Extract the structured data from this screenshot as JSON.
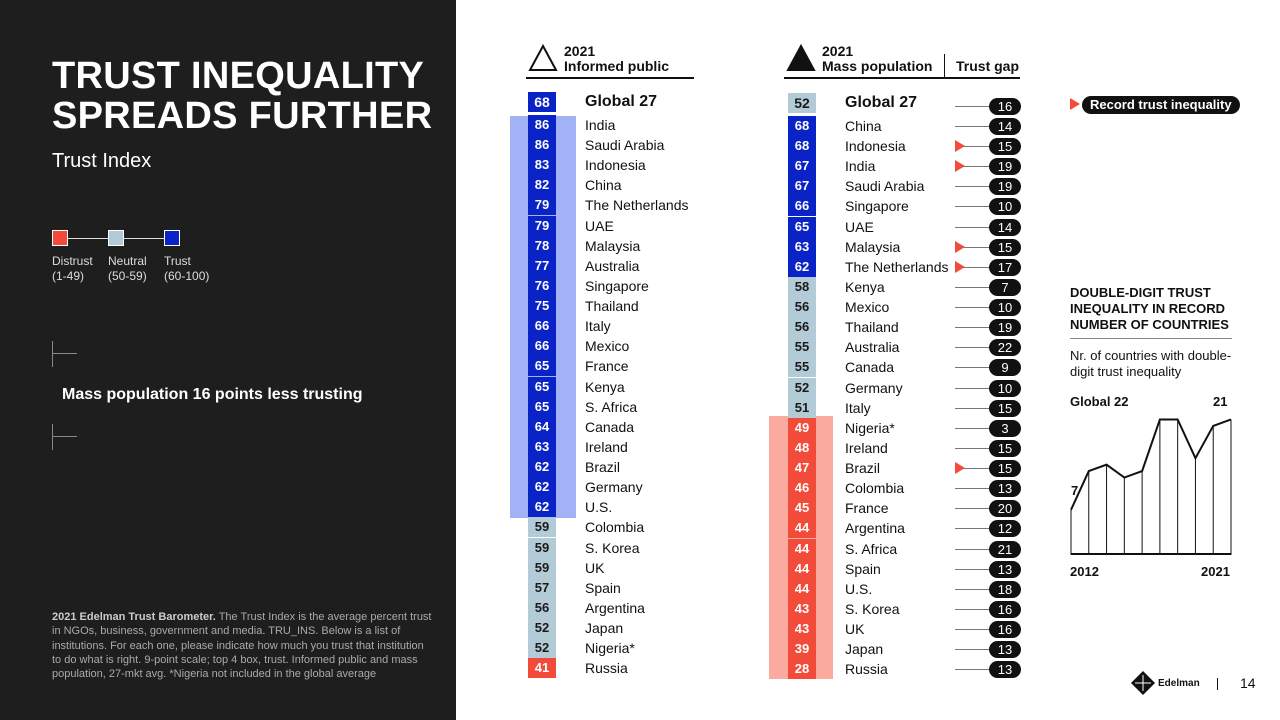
{
  "slide": {
    "title_line1": "TRUST INEQUALITY",
    "title_line2": "SPREADS FURTHER",
    "subtitle": "Trust Index",
    "mass_note": "Mass population 16 points less trusting",
    "footnote_bold": "2021 Edelman Trust Barometer.",
    "footnote_text": " The Trust Index is the average percent trust in NGOs, business, government and media. TRU_INS. Below is a list of institutions. For each one, please indicate how much you trust that institution to do what is right. 9-point scale; top 4 box, trust. Informed public and mass population, 27-mkt avg. *Nigeria not included in the global average",
    "page_number": "14",
    "logo_text": "Edelman"
  },
  "legend": {
    "items": [
      {
        "label": "Distrust",
        "range": "(1-49)",
        "color": "#f34b3a"
      },
      {
        "label": "Neutral",
        "range": "(50-59)",
        "color": "#b3cbd6"
      },
      {
        "label": "Trust",
        "range": "(60-100)",
        "color": "#0a23c7"
      }
    ]
  },
  "colors": {
    "trust": "#0a23c7",
    "neutral": "#b3cbd6",
    "distrust": "#f34b3a",
    "trust_highlight": "#a3b2f6",
    "distrust_highlight": "#fbaaa0"
  },
  "chart_data": [
    {
      "type": "table",
      "title": "Trust Index",
      "header_year": "2021",
      "header_label": "Informed public",
      "global": {
        "label": "Global 27",
        "value": 68
      },
      "rows": [
        {
          "country": "India",
          "value": 86
        },
        {
          "country": "Saudi Arabia",
          "value": 86
        },
        {
          "country": "Indonesia",
          "value": 83
        },
        {
          "country": "China",
          "value": 82
        },
        {
          "country": "The Netherlands",
          "value": 79
        },
        {
          "country": "UAE",
          "value": 79
        },
        {
          "country": "Malaysia",
          "value": 78
        },
        {
          "country": "Australia",
          "value": 77
        },
        {
          "country": "Singapore",
          "value": 76
        },
        {
          "country": "Thailand",
          "value": 75
        },
        {
          "country": "Italy",
          "value": 66
        },
        {
          "country": "Mexico",
          "value": 66
        },
        {
          "country": "France",
          "value": 65
        },
        {
          "country": "Kenya",
          "value": 65
        },
        {
          "country": "S. Africa",
          "value": 65
        },
        {
          "country": "Canada",
          "value": 64
        },
        {
          "country": "Ireland",
          "value": 63
        },
        {
          "country": "Brazil",
          "value": 62
        },
        {
          "country": "Germany",
          "value": 62
        },
        {
          "country": "U.S.",
          "value": 62
        },
        {
          "country": "Colombia",
          "value": 59
        },
        {
          "country": "S. Korea",
          "value": 59
        },
        {
          "country": "UK",
          "value": 59
        },
        {
          "country": "Spain",
          "value": 57
        },
        {
          "country": "Argentina",
          "value": 56
        },
        {
          "country": "Japan",
          "value": 52
        },
        {
          "country": "Nigeria*",
          "value": 52
        },
        {
          "country": "Russia",
          "value": 41
        }
      ]
    },
    {
      "type": "table",
      "title": "Trust Index",
      "header_year": "2021",
      "header_label": "Mass population",
      "gap_header": "Trust gap",
      "record_label": "Record trust inequality",
      "global": {
        "label": "Global 27",
        "value": 52,
        "gap": 16
      },
      "rows": [
        {
          "country": "China",
          "value": 68,
          "gap": 14,
          "record": false
        },
        {
          "country": "Indonesia",
          "value": 68,
          "gap": 15,
          "record": true
        },
        {
          "country": "India",
          "value": 67,
          "gap": 19,
          "record": true
        },
        {
          "country": "Saudi Arabia",
          "value": 67,
          "gap": 19,
          "record": false
        },
        {
          "country": "Singapore",
          "value": 66,
          "gap": 10,
          "record": false
        },
        {
          "country": "UAE",
          "value": 65,
          "gap": 14,
          "record": false
        },
        {
          "country": "Malaysia",
          "value": 63,
          "gap": 15,
          "record": true
        },
        {
          "country": "The Netherlands",
          "value": 62,
          "gap": 17,
          "record": true
        },
        {
          "country": "Kenya",
          "value": 58,
          "gap": 7,
          "record": false
        },
        {
          "country": "Mexico",
          "value": 56,
          "gap": 10,
          "record": false
        },
        {
          "country": "Thailand",
          "value": 56,
          "gap": 19,
          "record": false
        },
        {
          "country": "Australia",
          "value": 55,
          "gap": 22,
          "record": false
        },
        {
          "country": "Canada",
          "value": 55,
          "gap": 9,
          "record": false
        },
        {
          "country": "Germany",
          "value": 52,
          "gap": 10,
          "record": false
        },
        {
          "country": "Italy",
          "value": 51,
          "gap": 15,
          "record": false
        },
        {
          "country": "Nigeria*",
          "value": 49,
          "gap": 3,
          "record": false
        },
        {
          "country": "Ireland",
          "value": 48,
          "gap": 15,
          "record": false
        },
        {
          "country": "Brazil",
          "value": 47,
          "gap": 15,
          "record": true
        },
        {
          "country": "Colombia",
          "value": 46,
          "gap": 13,
          "record": false
        },
        {
          "country": "France",
          "value": 45,
          "gap": 20,
          "record": false
        },
        {
          "country": "Argentina",
          "value": 44,
          "gap": 12,
          "record": false
        },
        {
          "country": "S. Africa",
          "value": 44,
          "gap": 21,
          "record": false
        },
        {
          "country": "Spain",
          "value": 44,
          "gap": 13,
          "record": false
        },
        {
          "country": "U.S.",
          "value": 44,
          "gap": 18,
          "record": false
        },
        {
          "country": "S. Korea",
          "value": 43,
          "gap": 16,
          "record": false
        },
        {
          "country": "UK",
          "value": 43,
          "gap": 16,
          "record": false
        },
        {
          "country": "Japan",
          "value": 39,
          "gap": 13,
          "record": false
        },
        {
          "country": "Russia",
          "value": 28,
          "gap": 13,
          "record": false
        }
      ]
    },
    {
      "type": "area",
      "title": "DOUBLE-DIGIT TRUST INEQUALITY IN RECORD NUMBER OF COUNTRIES",
      "subtitle": "Nr. of countries with double-digit trust inequality",
      "series_label": "Global 22",
      "x_start_label": "2012",
      "x_end_label": "2021",
      "x": [
        2012,
        2013,
        2014,
        2015,
        2016,
        2017,
        2018,
        2019,
        2020,
        2021
      ],
      "values": [
        7,
        13,
        14,
        12,
        13,
        21,
        21,
        15,
        20,
        21
      ],
      "start_label": "7",
      "end_label": "21",
      "ylim": [
        0,
        22
      ]
    }
  ]
}
